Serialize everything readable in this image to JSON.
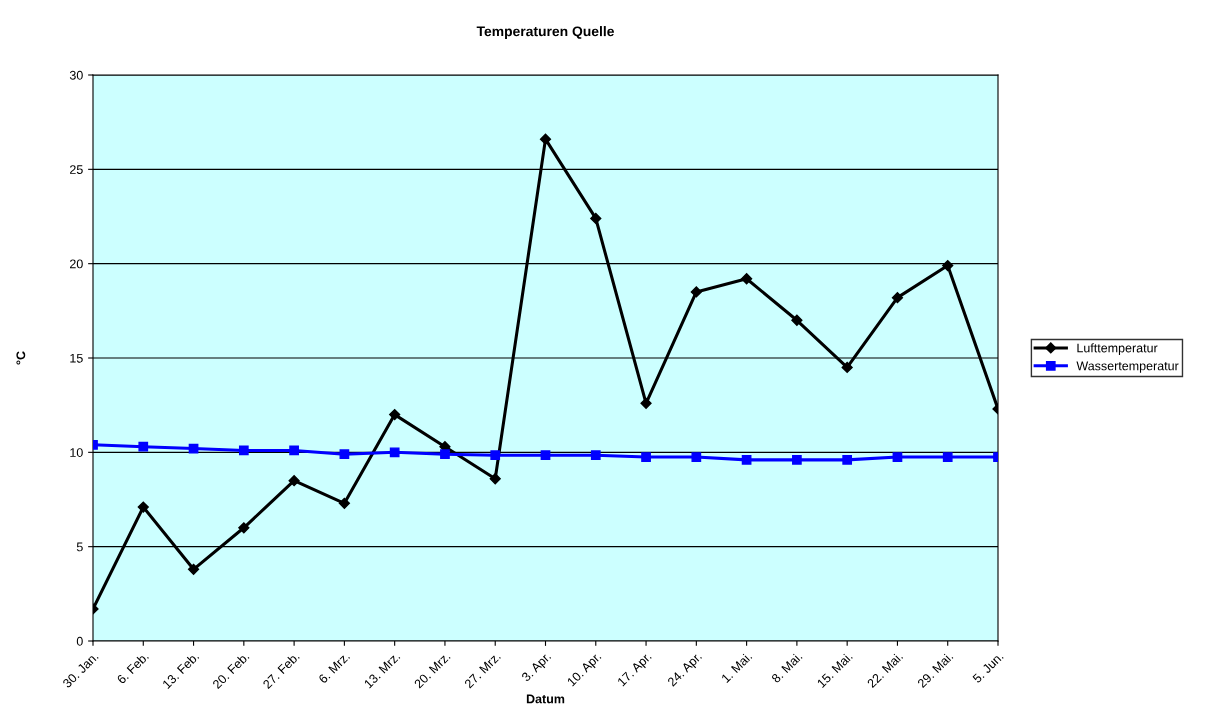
{
  "chart_data": {
    "type": "line",
    "title": "Temperaturen Quelle",
    "xlabel": "Datum",
    "ylabel": "°C",
    "categories": [
      "30. Jan.",
      "6. Feb.",
      "13. Feb.",
      "20. Feb.",
      "27. Feb.",
      "6. Mrz.",
      "13. Mrz.",
      "20. Mrz.",
      "27. Mrz.",
      "3. Apr.",
      "10. Apr.",
      "17. Apr.",
      "24. Apr.",
      "1. Mai.",
      "8. Mai.",
      "15. Mai.",
      "22. Mai.",
      "29. Mai.",
      "5. Jun."
    ],
    "series": [
      {
        "name": "Lufttemperatur",
        "color": "#000000",
        "marker": "diamond",
        "values": [
          1.7,
          7.1,
          3.8,
          6.0,
          8.5,
          7.3,
          12.0,
          10.3,
          8.6,
          26.6,
          22.4,
          12.6,
          18.5,
          19.2,
          17.0,
          14.5,
          18.2,
          19.9,
          12.3
        ]
      },
      {
        "name": "Wassertemperatur",
        "color": "#0000ff",
        "marker": "square",
        "values": [
          10.4,
          10.3,
          10.2,
          10.1,
          10.1,
          9.9,
          10.0,
          9.9,
          9.85,
          9.85,
          9.85,
          9.75,
          9.75,
          9.6,
          9.6,
          9.6,
          9.75,
          9.75,
          9.75
        ]
      }
    ],
    "ylim": [
      0,
      30
    ],
    "yticks": [
      0,
      5,
      10,
      15,
      20,
      25,
      30
    ],
    "grid": "y",
    "legend": "right",
    "line_style": "solid"
  }
}
